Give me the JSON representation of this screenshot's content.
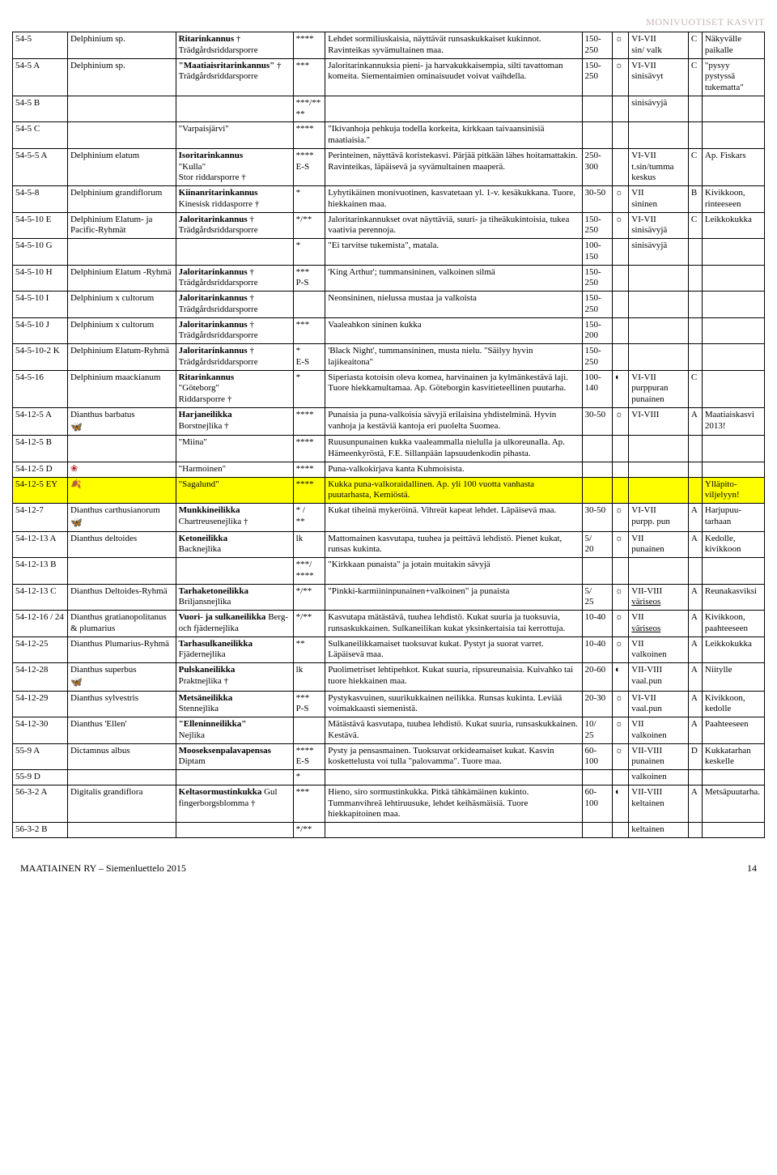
{
  "header": {
    "title": "MONIVUOTISET KASVIT"
  },
  "footer": {
    "left": "MAATIAINEN RY – Siemenluettelo 2015",
    "page": "14"
  },
  "rows": [
    {
      "code": "54-5",
      "species": "Delphinium sp.",
      "name_html": "<b>Ritarinkannus</b> †\nTrädgårdsriddarsporre",
      "rating": "****",
      "desc": "Lehdet sormiliuskaisia, näyttävät runsaskukkai­set kukinnot. Ravinteikas syvämultainen maa.",
      "height": "150-250",
      "sun": "☼",
      "bloom": "VI-VII\nsin/ valk",
      "zone": "C",
      "notes": "Näkyvälle paikalle"
    },
    {
      "code": "54-5 A",
      "species": "Delphinium sp.",
      "name_html": "<b>\"Maatiaisritarin­kannus\"</b> †\nTrädgårdsriddarsporre",
      "rating": "***",
      "desc": "Jaloritarinkannuksia pieni- ja harvakukkaisem­pia, silti tavattoman komeita. Siementaimien ominaisuudet voivat vaihdella.",
      "height": "150-250",
      "sun": "☼",
      "bloom": "VI-VII\nsinisävyt",
      "zone": "C",
      "notes": "\"pysyy pystyssä tukematta\""
    },
    {
      "code": "54-5 B",
      "species": "",
      "name_html": "",
      "rating": "***/****",
      "desc": "",
      "height": "",
      "sun": "",
      "bloom": "sinisävyjä",
      "zone": "",
      "notes": ""
    },
    {
      "code": "54-5 C",
      "species": "",
      "name_html": "\"Varpaisjärvi\"",
      "rating": "****",
      "desc": "\"Ikivanhoja pehkuja todella korkeita, kirkkaan taivaansinisiä maatiaisia.\"",
      "height": "",
      "sun": "",
      "bloom": "",
      "zone": "",
      "notes": ""
    },
    {
      "code": "54-5-5 A",
      "species": "Delphinium elatum",
      "name_html": "<b>Isoritarinkannus</b>\n\"Kulla\"\nStor riddarsporre †",
      "rating": "****\nE-S",
      "desc": "Perinteinen, näyttävä koristekasvi. Pärjää pitkään lähes hoitamattakin. Ravinteikas, läpäisevä ja syvämultainen maaperä.",
      "height": "250-300",
      "sun": "",
      "bloom": "VI-VII\nt.sin/tum­ma keskus",
      "zone": "C",
      "notes": "Ap. Fiskars"
    },
    {
      "code": "54-5-8",
      "species": "Delphinium grandiflorum",
      "name_html": "<b>Kiinanritarinkannus</b>\nKinesisk riddasporre †",
      "rating": "*",
      "desc": "Lyhytikäinen monivuotinen, kasvatetaan yl. 1-v. kesäkukkana. Tuore, hiekkainen maa.",
      "height": "30-50",
      "sun": "☼",
      "bloom": "VII\nsininen",
      "zone": "B",
      "notes": "Kivikkoon, rinteeseen"
    },
    {
      "code": "54-5-10 E",
      "species": "Delphinium Elatum- ja Pacific-Ryhmät",
      "name_html": "<b>Jaloritarinkannus</b> †\nTrädgårdsriddarsporre",
      "rating": "*/**",
      "desc": "Jaloritarinkannukset ovat näyttäviä, suuri- ja tiheäkukintoisia, tukea vaativia perennoja.",
      "height": "150-250",
      "sun": "☼",
      "bloom": "VI-VII\nsinisävyjä",
      "zone": "C",
      "notes": "Leikkokuk­ka"
    },
    {
      "code": "54-5-10 G",
      "species": "",
      "name_html": "",
      "rating": "*",
      "desc": "\"Ei tarvitse tukemista\", matala.",
      "height": "100-150",
      "sun": "",
      "bloom": "sinisävyjä",
      "zone": "",
      "notes": ""
    },
    {
      "code": "54-5-10 H",
      "species": "Delphinium Elatum -Ryhmä",
      "name_html": "<b>Jaloritarinkannus</b> †\nTrädgårdsriddarsporre",
      "rating": "***\nP-S",
      "desc": " 'King Arthur'; tummansininen, valkoinen silmä",
      "height": "150-250",
      "sun": "",
      "bloom": "",
      "zone": "",
      "notes": ""
    },
    {
      "code": "54-5-10 I",
      "species": "Delphinium x cultorum",
      "name_html": "<b>Jaloritarinkannus</b> †\nTrädgårdsriddarsporre",
      "rating": "",
      "desc": "Neonsininen, nielussa mustaa ja valkoista",
      "height": "150-250",
      "sun": "",
      "bloom": "",
      "zone": "",
      "notes": ""
    },
    {
      "code": "54-5-10 J",
      "species": "Delphinium x cultorum",
      "name_html": "<b>Jaloritarinkannus</b> †\nTrädgårdsriddarsporre",
      "rating": "***",
      "desc": "Vaaleahkon sininen kukka",
      "height": "150-200",
      "sun": "",
      "bloom": "",
      "zone": "",
      "notes": ""
    },
    {
      "code": "54-5-10-2 K",
      "species": "Delphinium Elatum-Ryhmä",
      "name_html": "<b>Jaloritarinkannus</b> †\nTrädgårdsriddarsporre",
      "rating": "*\nE-S",
      "desc": " 'Black Night', tummansininen, musta nielu. \"Säilyy hyvin lajikeaitona\"",
      "height": "150-250",
      "sun": "",
      "bloom": "",
      "zone": "",
      "notes": ""
    },
    {
      "code": "54-5-16",
      "species": "Delphinium maackianum",
      "name_html": "<b>Ritarinkannus</b>\n\"Göteborg\"\nRiddarsporre †",
      "rating": "*",
      "desc": "Siperiasta kotoisin oleva komea, harvinainen ja kylmänkestävä laji. Tuore hiekkamultamaa. Ap. Göteborgin kasvitieteellinen puutarha.",
      "height": "100-140",
      "sun": "◐",
      "bloom": "VI-VII\npurppuran punainen",
      "zone": "C",
      "notes": ""
    },
    {
      "code": "54-12-5 A",
      "species_html": "Dianthus barbatus\n<span class='butterfly' data-name='butterfly-icon' data-interactable='false'></span>",
      "name_html": "<b>Harjaneilikka</b>\nBorstnejlika †",
      "rating": "****",
      "desc": "Punaisia ja puna-valkoisia sävyjä erilaisina yh­distelminä. Hyvin vanhoja ja kestäviä kantoja eri puolelta Suomea.",
      "height": "30-50",
      "sun": "☼",
      "bloom": "VI-VIII",
      "zone": "A",
      "notes": "Maatiais­kasvi 2013!"
    },
    {
      "code": "54-12-5 B",
      "species": "",
      "name_html": "\"Miina\"",
      "rating": "****",
      "desc": "Ruusunpunainen kukka vaaleammalla nielulla ja ulkoreunalla. Ap. Hämeenkyröstä, F.E. Sil­lanpään lapsuudenkodin pihasta.",
      "height": "",
      "sun": "",
      "bloom": "",
      "zone": "",
      "notes": ""
    },
    {
      "code": "54-12-5 D",
      "species_html": "<span class='flower-red' data-name='flower-icon' data-interactable='false'></span>",
      "name_html": "\"Harmoinen\"",
      "rating": "****",
      "desc": "Puna-valkokirjava kanta Kuhmoisista.",
      "height": "",
      "sun": "",
      "bloom": "",
      "zone": "",
      "notes": ""
    },
    {
      "code": "54-12-5 EY",
      "hl": true,
      "species_html": "<span class='leaf' data-name='leaf-icon' data-interactable='false'></span>",
      "name_html": "\"Sagalund\"",
      "rating": "****",
      "desc": "Kukka puna-valkoraidallinen. Ap. yli 100 vuotta vanhasta puutarhasta, Kemiöstä.",
      "height": "",
      "sun": "",
      "bloom": "",
      "zone": "",
      "notes": "Ylläpito­viljelyyn!"
    },
    {
      "code": "54-12-7",
      "species_html": "Dianthus carthusianorum <span class='butterfly' data-name='butterfly-icon' data-interactable='false'></span>",
      "name_html": "<b>Munkkineilikka</b>\nChartreusenejlika †",
      "rating": "* /\n**",
      "desc": "Kukat tiheinä mykeröinä. Vihreät kapeat lehdet. Läpäisevä maa.",
      "height": "30-50",
      "sun": "☼",
      "bloom": "VI-VII\npurpp. pun",
      "zone": "A",
      "notes": "Harjupuu­tarhaan"
    },
    {
      "code": "54-12-13 A",
      "species": "Dianthus deltoides",
      "name_html": "<b>Ketoneilikka</b>\nBacknejlika",
      "rating": "lk",
      "desc": "Mattomainen kasvutapa, tuuhea ja peittävä lehdistö. Pienet kukat, runsas kukinta.",
      "height": "5/\n20",
      "sun": "☼",
      "bloom": "VII\npunainen",
      "zone": "A",
      "notes": "Kedolle, kivikkoon"
    },
    {
      "code": "54-12-13 B",
      "species": "",
      "name_html": "",
      "rating": "***/\n****",
      "desc": "\"Kirkkaan punaista\" ja jotain muitakin sävyjä",
      "height": "",
      "sun": "",
      "bloom": "",
      "zone": "",
      "notes": ""
    },
    {
      "code": "54-12-13 C",
      "species": "Dianthus Deltoides-Ryhmä",
      "name_html": "<b>Tarhaketoneilikka</b>\nBriljansnejlika",
      "rating": "*/**",
      "desc": "\"Pinkki-karmiininpunainen+valkoinen\" ja punaista",
      "height": "5/\n25",
      "sun": "☼",
      "bloom": "VII-VIII\n<u>väriseos</u>",
      "zone": "A",
      "notes": "Reunakas­viksi"
    },
    {
      "code": "54-12-16 / 24",
      "species": "Dianthus gratianopolitanus & plumarius",
      "name_html": "<b>Vuori- ja sulkanei­likka</b> Berg- och fjädernejlika",
      "rating": "*/**",
      "desc": "Kasvutapa mätästävä, tuuhea lehdistö. Kukat suuria ja tuoksuvia, runsaskukkainen. Sulkanei­likan kukat yksinkertaisia tai kerrottuja.",
      "height": "10-40",
      "sun": "☼",
      "bloom": "VII\n<u>väriseos</u>",
      "zone": "A",
      "notes": "Kivikkoon, paahtee­seen"
    },
    {
      "code": "54-12-25",
      "species": "Dianthus Plumarius-Ryhmä",
      "name_html": "<b>Tarhasulkaneilikka</b>\nFjädernejlika",
      "rating": "**",
      "desc": "Sulkaneilikkamaiset tuoksuvat kukat. Pystyt ja suorat varret. Läpäisevä maa.",
      "height": "10-40",
      "sun": "☼",
      "bloom": "VII\nvalkoinen",
      "zone": "A",
      "notes": "Leikkokuk­ka"
    },
    {
      "code": "54-12-28",
      "species_html": "Dianthus superbus\n<span class='butterfly' data-name='butterfly-icon' data-interactable='false'></span>",
      "name_html": "<b>Pulskaneilikka</b>\nPraktnejlika †",
      "rating": "lk",
      "desc": "Puolimetriset lehtipehkot. Kukat suuria, ripsu­reunaisia. Kuivahko tai tuore hiekkainen maa.",
      "height": "20-60",
      "sun": "◐",
      "bloom": "VII-VIII\nvaal.pun",
      "zone": "A",
      "notes": "Niitylle"
    },
    {
      "code": "54-12-29",
      "species": "Dianthus sylvestris",
      "name_html": "<b>Metsäneilikka</b>\nStennejlika",
      "rating": "***\nP-S",
      "desc": "Pystykasvuinen, suurikukkainen neilikka. Run­sas kukinta. Leviää voimakkaasti siemenistä.",
      "height": "20-30",
      "sun": "☼",
      "bloom": "VI-VII\nvaal.pun",
      "zone": "A",
      "notes": "Kivikkoon, kedolle"
    },
    {
      "code": "54-12-30",
      "species": "Dianthus 'Ellen'",
      "name_html": "<b>\"Elleninneilikka\"</b>\nNejlika",
      "rating": "",
      "desc": "Mätästävä kasvutapa, tuuhea lehdistö. Kukat suuria, runsaskukkainen. Kestävä.",
      "height": "10/\n25",
      "sun": "☼",
      "bloom": "VII\nvalkoinen",
      "zone": "A",
      "notes": "Paahtee­seen"
    },
    {
      "code": "55-9 A",
      "species": "Dictamnus albus",
      "name_html": "<b>Mooseksenpalava­pensas</b>\nDiptam",
      "rating": "****\nE-S",
      "desc": "Pysty ja pensasmainen. Tuoksuvat orkideamai­set kukat. Kasvin koskettelusta voi tulla \"palo­vamma\". Tuore maa.",
      "height": "60-100",
      "sun": "☼",
      "bloom": "VII-VIII\npunainen",
      "zone": "D",
      "notes": "Kukkatar­han keskelle"
    },
    {
      "code": "55-9 D",
      "species": "",
      "name_html": "",
      "rating": "*",
      "desc": "",
      "height": "",
      "sun": "",
      "bloom": "valkoinen",
      "zone": "",
      "notes": ""
    },
    {
      "code": "56-3-2 A",
      "species": "Digitalis grandiflora",
      "name_html": "<b>Keltasormustinkuk­ka</b> Gul fingerborgsblomma †",
      "rating": "***",
      "desc": "Hieno, siro sormustinkukka. Pitkä tähkämäinen kukinto. Tummanvihreä lehtiruusuke, lehdet keihäsmäisiä. Tuore hiekkapitoinen maa.",
      "height": "60-100",
      "sun": "◐",
      "bloom": "VII-VIII\nkeltainen",
      "zone": "A",
      "notes": "Metsäpuu­tarha."
    },
    {
      "code": "56-3-2 B",
      "species": "",
      "name_html": "",
      "rating": "*/**",
      "desc": "",
      "height": "",
      "sun": "",
      "bloom": "keltainen",
      "zone": "",
      "notes": ""
    }
  ]
}
